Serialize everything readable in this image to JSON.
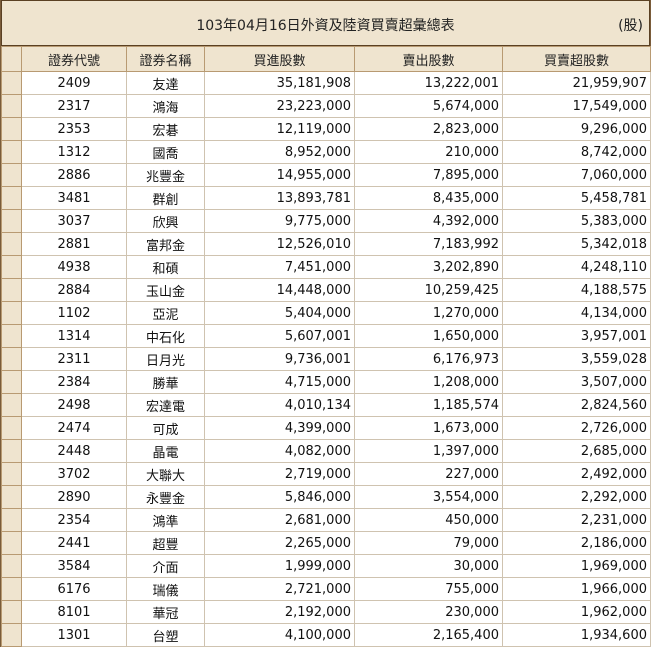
{
  "header": {
    "title": "103年04月16日外資及陸資買賣超彙總表",
    "unit": "(股)"
  },
  "columns": [
    "證券代號",
    "證券名稱",
    "買進股數",
    "賣出股數",
    "買賣超股數"
  ],
  "rows": [
    {
      "code": "2409",
      "name": "友達",
      "buy": "35,181,908",
      "sell": "13,222,001",
      "net": "21,959,907"
    },
    {
      "code": "2317",
      "name": "鴻海",
      "buy": "23,223,000",
      "sell": "5,674,000",
      "net": "17,549,000"
    },
    {
      "code": "2353",
      "name": "宏碁",
      "buy": "12,119,000",
      "sell": "2,823,000",
      "net": "9,296,000"
    },
    {
      "code": "1312",
      "name": "國喬",
      "buy": "8,952,000",
      "sell": "210,000",
      "net": "8,742,000"
    },
    {
      "code": "2886",
      "name": "兆豐金",
      "buy": "14,955,000",
      "sell": "7,895,000",
      "net": "7,060,000"
    },
    {
      "code": "3481",
      "name": "群創",
      "buy": "13,893,781",
      "sell": "8,435,000",
      "net": "5,458,781"
    },
    {
      "code": "3037",
      "name": "欣興",
      "buy": "9,775,000",
      "sell": "4,392,000",
      "net": "5,383,000"
    },
    {
      "code": "2881",
      "name": "富邦金",
      "buy": "12,526,010",
      "sell": "7,183,992",
      "net": "5,342,018"
    },
    {
      "code": "4938",
      "name": "和碩",
      "buy": "7,451,000",
      "sell": "3,202,890",
      "net": "4,248,110"
    },
    {
      "code": "2884",
      "name": "玉山金",
      "buy": "14,448,000",
      "sell": "10,259,425",
      "net": "4,188,575"
    },
    {
      "code": "1102",
      "name": "亞泥",
      "buy": "5,404,000",
      "sell": "1,270,000",
      "net": "4,134,000"
    },
    {
      "code": "1314",
      "name": "中石化",
      "buy": "5,607,001",
      "sell": "1,650,000",
      "net": "3,957,001"
    },
    {
      "code": "2311",
      "name": "日月光",
      "buy": "9,736,001",
      "sell": "6,176,973",
      "net": "3,559,028"
    },
    {
      "code": "2384",
      "name": "勝華",
      "buy": "4,715,000",
      "sell": "1,208,000",
      "net": "3,507,000"
    },
    {
      "code": "2498",
      "name": "宏達電",
      "buy": "4,010,134",
      "sell": "1,185,574",
      "net": "2,824,560"
    },
    {
      "code": "2474",
      "name": "可成",
      "buy": "4,399,000",
      "sell": "1,673,000",
      "net": "2,726,000"
    },
    {
      "code": "2448",
      "name": "晶電",
      "buy": "4,082,000",
      "sell": "1,397,000",
      "net": "2,685,000"
    },
    {
      "code": "3702",
      "name": "大聯大",
      "buy": "2,719,000",
      "sell": "227,000",
      "net": "2,492,000"
    },
    {
      "code": "2890",
      "name": "永豐金",
      "buy": "5,846,000",
      "sell": "3,554,000",
      "net": "2,292,000"
    },
    {
      "code": "2354",
      "name": "鴻準",
      "buy": "2,681,000",
      "sell": "450,000",
      "net": "2,231,000"
    },
    {
      "code": "2441",
      "name": "超豐",
      "buy": "2,265,000",
      "sell": "79,000",
      "net": "2,186,000"
    },
    {
      "code": "3584",
      "name": "介面",
      "buy": "1,999,000",
      "sell": "30,000",
      "net": "1,969,000"
    },
    {
      "code": "6176",
      "name": "瑞儀",
      "buy": "2,721,000",
      "sell": "755,000",
      "net": "1,966,000"
    },
    {
      "code": "8101",
      "name": "華冠",
      "buy": "2,192,000",
      "sell": "230,000",
      "net": "1,962,000"
    },
    {
      "code": "1301",
      "name": "台塑",
      "buy": "4,100,000",
      "sell": "2,165,400",
      "net": "1,934,600"
    }
  ]
}
